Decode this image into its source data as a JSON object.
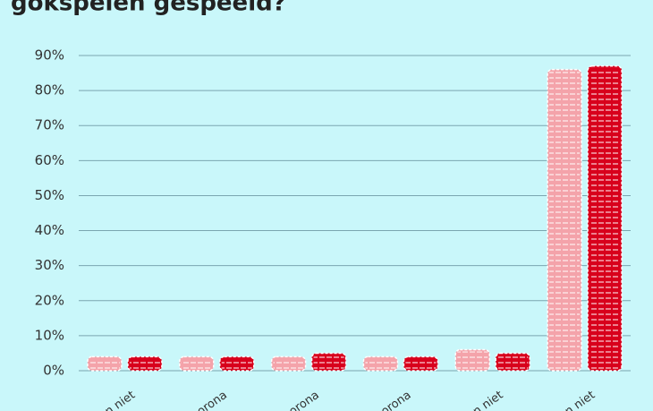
{
  "chart_data": {
    "type": "bar",
    "title": "gokspelen gespeeld?",
    "categories": [
      "n niet",
      "orona",
      "corona",
      "orona",
      "n niet",
      "n niet"
    ],
    "series": [
      {
        "color": "#f4a3aa",
        "values": [
          4,
          4,
          4,
          4,
          6,
          86
        ]
      },
      {
        "color": "#d8001c",
        "values": [
          4,
          4,
          5,
          4,
          5,
          87
        ]
      }
    ],
    "ylim": [
      0,
      90
    ],
    "yticks": [
      {
        "value": 0,
        "label": "0%"
      },
      {
        "value": 10,
        "label": "10%"
      },
      {
        "value": 20,
        "label": "20%"
      },
      {
        "value": 30,
        "label": "30%"
      },
      {
        "value": 40,
        "label": "40%"
      },
      {
        "value": 50,
        "label": "50%"
      },
      {
        "value": 60,
        "label": "60%"
      },
      {
        "value": 70,
        "label": "70%"
      },
      {
        "value": 80,
        "label": "80%"
      },
      {
        "value": 90,
        "label": "90%"
      }
    ],
    "grid": true
  }
}
